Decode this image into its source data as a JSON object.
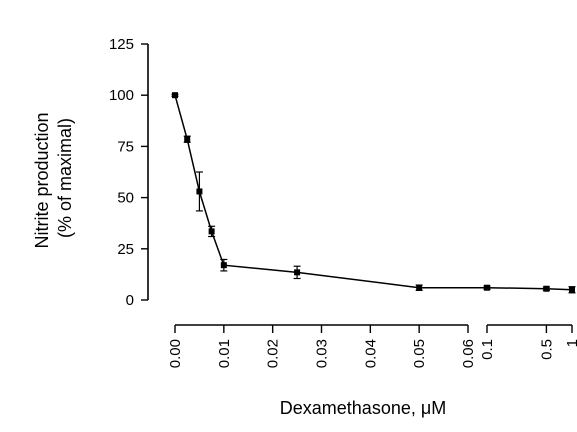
{
  "chart_data": {
    "type": "line",
    "xlabel": "Dexamethasone, μM",
    "ylabel": [
      "Nitrite production",
      "(% of maximal)"
    ],
    "ylim": [
      0,
      125
    ],
    "yticks": [
      "0",
      "25",
      "50",
      "75",
      "100",
      "125"
    ],
    "x_axis": {
      "break": true,
      "linear_segment": {
        "range": [
          0,
          0.06
        ],
        "ticks": [
          "0.00",
          "0.01",
          "0.02",
          "0.03",
          "0.04",
          "0.05",
          "0.06"
        ]
      },
      "log_segment": {
        "range": [
          0.1,
          1
        ],
        "ticks": [
          "0.1",
          "0.5",
          "1"
        ]
      }
    },
    "series": [
      {
        "marker": "square",
        "color": "#000000",
        "points": [
          {
            "x": 0.0,
            "y": 100,
            "err": 0.5
          },
          {
            "x": 0.0025,
            "y": 78.5,
            "err": 1.5
          },
          {
            "x": 0.005,
            "y": 53,
            "err": 9.5
          },
          {
            "x": 0.0075,
            "y": 33.5,
            "err": 2.5
          },
          {
            "x": 0.01,
            "y": 17,
            "err": 2.8
          },
          {
            "x": 0.025,
            "y": 13.5,
            "err": 3
          },
          {
            "x": 0.05,
            "y": 6,
            "err": 1.3
          },
          {
            "x": 0.06,
            "y": 6,
            "err": 0
          },
          {
            "x": 0.1,
            "y": 6,
            "err": 0.8
          },
          {
            "x": 0.5,
            "y": 5.5,
            "err": 0.8
          },
          {
            "x": 1,
            "y": 5,
            "err": 1.5
          }
        ]
      }
    ]
  }
}
